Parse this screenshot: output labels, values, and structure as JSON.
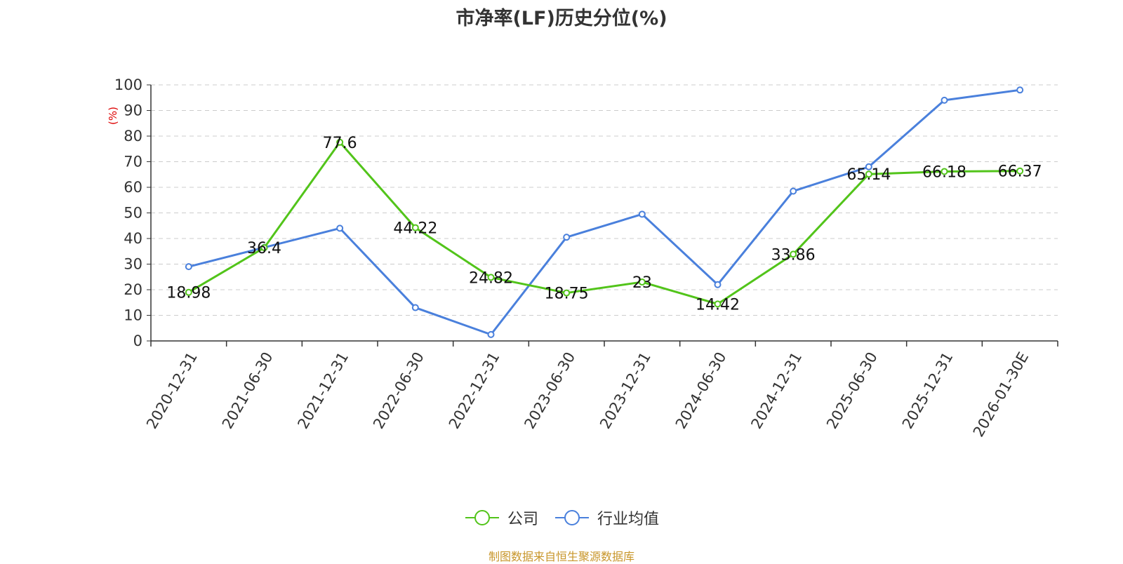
{
  "title": "市净率(LF)历史分位(%)",
  "source": "制图数据来自恒生聚源数据库",
  "colors": {
    "company": "#52c41a",
    "industry": "#4a80dc",
    "grid": "#cccccc",
    "axis": "#333333",
    "unit": "#dd0000"
  },
  "chart_data": {
    "type": "line",
    "title": "市净率(LF)历史分位(%)",
    "ylabel": "(%)",
    "ylim": [
      0,
      100
    ],
    "yticks": [
      0,
      10,
      20,
      30,
      40,
      50,
      60,
      70,
      80,
      90,
      100
    ],
    "grid": true,
    "legend_position": "bottom",
    "categories": [
      "2020-12-31",
      "2021-06-30",
      "2021-12-31",
      "2022-06-30",
      "2022-12-31",
      "2023-06-30",
      "2023-12-31",
      "2024-06-30",
      "2024-12-31",
      "2025-06-30",
      "2025-12-31",
      "2026-01-30E"
    ],
    "series": [
      {
        "name": "公司",
        "color": "#52c41a",
        "values": [
          18.98,
          36.4,
          77.6,
          44.22,
          24.82,
          18.75,
          23,
          14.42,
          33.86,
          65.14,
          66.18,
          66.37
        ],
        "labeled": true
      },
      {
        "name": "行业均值",
        "color": "#4a80dc",
        "values": [
          29,
          36.5,
          44,
          13,
          2.5,
          40.5,
          49.5,
          22,
          58.5,
          68,
          94,
          98
        ],
        "labeled": false
      }
    ]
  }
}
